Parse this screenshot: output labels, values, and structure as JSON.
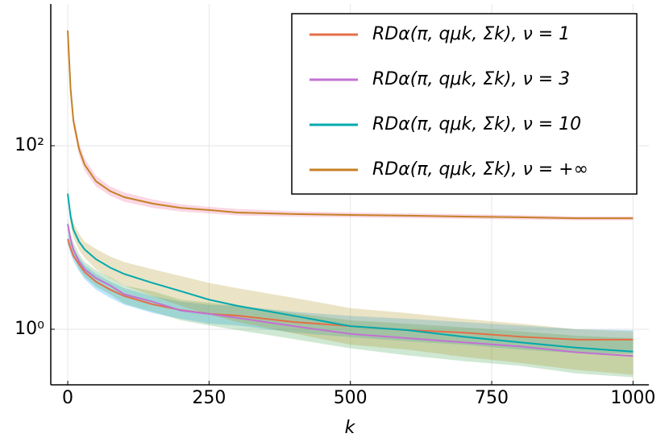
{
  "chart_data": {
    "type": "line",
    "xlabel": "k",
    "x": [
      0,
      5,
      10,
      20,
      30,
      50,
      75,
      100,
      150,
      200,
      250,
      300,
      400,
      500,
      600,
      700,
      800,
      900,
      1000
    ],
    "xlim": [
      -30,
      1028
    ],
    "xticks": [
      0,
      250,
      500,
      750,
      1000
    ],
    "ylim": [
      0.248,
      3500
    ],
    "yscale": "log",
    "yticks": [
      {
        "value": 1,
        "label": "10⁰"
      },
      {
        "value": 100,
        "label": "10²"
      }
    ],
    "grid": true,
    "legend": "top-right",
    "series": [
      {
        "name": "RDα(π, qμk, Σk), ν = 1",
        "color": "#e36f47",
        "band_color": "#009afa",
        "values": [
          9.6,
          7.6,
          6.3,
          5.1,
          4.2,
          3.3,
          2.7,
          2.3,
          1.87,
          1.62,
          1.47,
          1.41,
          1.2,
          1.08,
          0.98,
          0.92,
          0.83,
          0.77,
          0.77
        ],
        "lower": [
          8.5,
          6.6,
          5.5,
          4.3,
          3.5,
          2.7,
          2.2,
          1.85,
          1.5,
          1.3,
          1.15,
          1.1,
          0.92,
          0.82,
          0.74,
          0.68,
          0.6,
          0.55,
          0.54
        ],
        "upper": [
          11,
          8.8,
          7.3,
          6,
          5,
          4,
          3.3,
          2.8,
          2.3,
          2.0,
          1.85,
          1.8,
          1.55,
          1.4,
          1.3,
          1.2,
          1.1,
          1.0,
          0.98
        ]
      },
      {
        "name": "RDα(π, qμk, Σk), ν = 3",
        "color": "#c271d2",
        "band_color": "#3ea44e",
        "values": [
          14,
          9.5,
          7.4,
          5.5,
          4.5,
          3.6,
          3.0,
          2.4,
          2.0,
          1.6,
          1.47,
          1.33,
          1.08,
          0.89,
          0.8,
          0.72,
          0.65,
          0.56,
          0.51
        ],
        "lower": [
          12,
          8,
          6.2,
          4.5,
          3.7,
          2.9,
          2.4,
          1.9,
          1.55,
          1.25,
          1.1,
          0.98,
          0.78,
          0.62,
          0.52,
          0.45,
          0.4,
          0.33,
          0.3
        ],
        "upper": [
          16,
          11,
          8.8,
          6.6,
          5.4,
          4.4,
          3.7,
          3.0,
          2.6,
          2.1,
          1.95,
          1.8,
          1.5,
          1.25,
          1.15,
          1.05,
          0.95,
          0.85,
          0.8
        ]
      },
      {
        "name": "RDα(π, qμk, Σk), ν = 10",
        "color": "#00a9ad",
        "band_color": "#ac8e18",
        "values": [
          30,
          17,
          12.2,
          9,
          7.4,
          5.8,
          4.7,
          4.0,
          3.2,
          2.6,
          2.1,
          1.8,
          1.4,
          1.08,
          0.98,
          0.83,
          0.72,
          0.63,
          0.57
        ],
        "lower": [
          26,
          14,
          10,
          7.3,
          6,
          4.5,
          3.6,
          3.0,
          2.3,
          1.8,
          1.45,
          1.2,
          0.9,
          0.68,
          0.6,
          0.5,
          0.43,
          0.36,
          0.32
        ],
        "upper": [
          34,
          20,
          14.5,
          11,
          9,
          7.5,
          6.2,
          5.4,
          4.5,
          3.8,
          3.2,
          2.8,
          2.2,
          1.7,
          1.5,
          1.3,
          1.15,
          1.0,
          0.95
        ]
      },
      {
        "name": "RDα(π, qμk, Σk), ν = +∞",
        "color": "#c68125",
        "band_color": "#ed5e93",
        "values": [
          1800,
          420,
          187,
          92,
          62,
          41,
          32,
          27.5,
          23.4,
          21,
          19.9,
          18.7,
          18,
          17.6,
          17.3,
          16.9,
          16.6,
          16.2,
          16.2
        ],
        "lower": [
          1700,
          360,
          160,
          78,
          53,
          36,
          28.5,
          24.5,
          21,
          19.2,
          18.3,
          17.4,
          16.9,
          16.6,
          16.3,
          16,
          15.7,
          15.4,
          15.4
        ],
        "upper": [
          1900,
          490,
          220,
          108,
          72,
          47,
          36,
          31,
          26,
          23,
          21.6,
          20.5,
          19.3,
          18.7,
          18.3,
          17.9,
          17.5,
          17,
          17
        ]
      }
    ]
  }
}
